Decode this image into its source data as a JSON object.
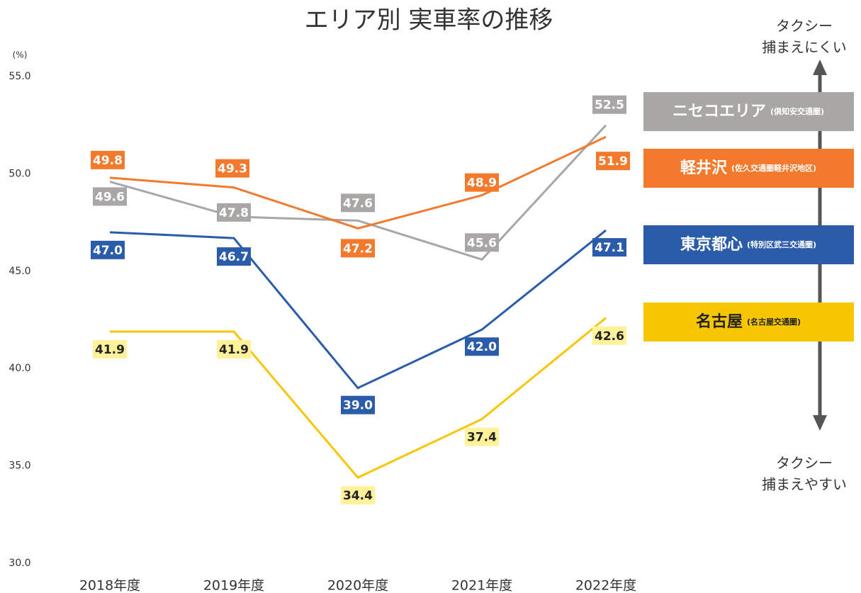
{
  "chart_data": {
    "type": "line",
    "title": "エリア別 実車率の推移",
    "y_label": "(%)",
    "categories": [
      "2018年度",
      "2019年度",
      "2020年度",
      "2021年度",
      "2022年度"
    ],
    "ylim": [
      30,
      55
    ],
    "yticks": [
      {
        "value": 30,
        "label": "30.0"
      },
      {
        "value": 35,
        "label": "35.0"
      },
      {
        "value": 40,
        "label": "40.0"
      },
      {
        "value": 45,
        "label": "45.0"
      },
      {
        "value": 50,
        "label": "50.0"
      },
      {
        "value": 55,
        "label": "55.0"
      }
    ],
    "series": [
      {
        "name": "ニセコエリア",
        "area": "(倶知安交通圏)",
        "color": "#a9a6a6",
        "values": [
          49.6,
          47.8,
          47.6,
          45.6,
          52.5
        ],
        "value_labels": [
          "49.6",
          "47.8",
          "47.6",
          "45.6",
          "52.5"
        ]
      },
      {
        "name": "軽井沢",
        "area": "(佐久交通圏軽井沢地区)",
        "color": "#f37a2c",
        "values": [
          49.8,
          49.3,
          47.2,
          48.9,
          51.9
        ],
        "value_labels": [
          "49.8",
          "49.3",
          "47.2",
          "48.9",
          "51.9"
        ]
      },
      {
        "name": "東京都心",
        "area": "(特別区武三交通圏)",
        "color": "#2b5ca9",
        "values": [
          47.0,
          46.7,
          39.0,
          42.0,
          47.1
        ],
        "value_labels": [
          "47.0",
          "46.7",
          "39.0",
          "42.0",
          "47.1"
        ]
      },
      {
        "name": "名古屋",
        "area": "(名古屋交通圏)",
        "color": "#f7c600",
        "values": [
          41.9,
          41.9,
          34.4,
          37.4,
          42.6
        ],
        "value_labels": [
          "41.9",
          "41.9",
          "34.4",
          "37.4",
          "42.6"
        ]
      }
    ],
    "annotations": {
      "top": [
        "タクシー",
        "捕まえにくい"
      ],
      "bottom": [
        "タクシー",
        "捕まえやすい"
      ]
    }
  }
}
